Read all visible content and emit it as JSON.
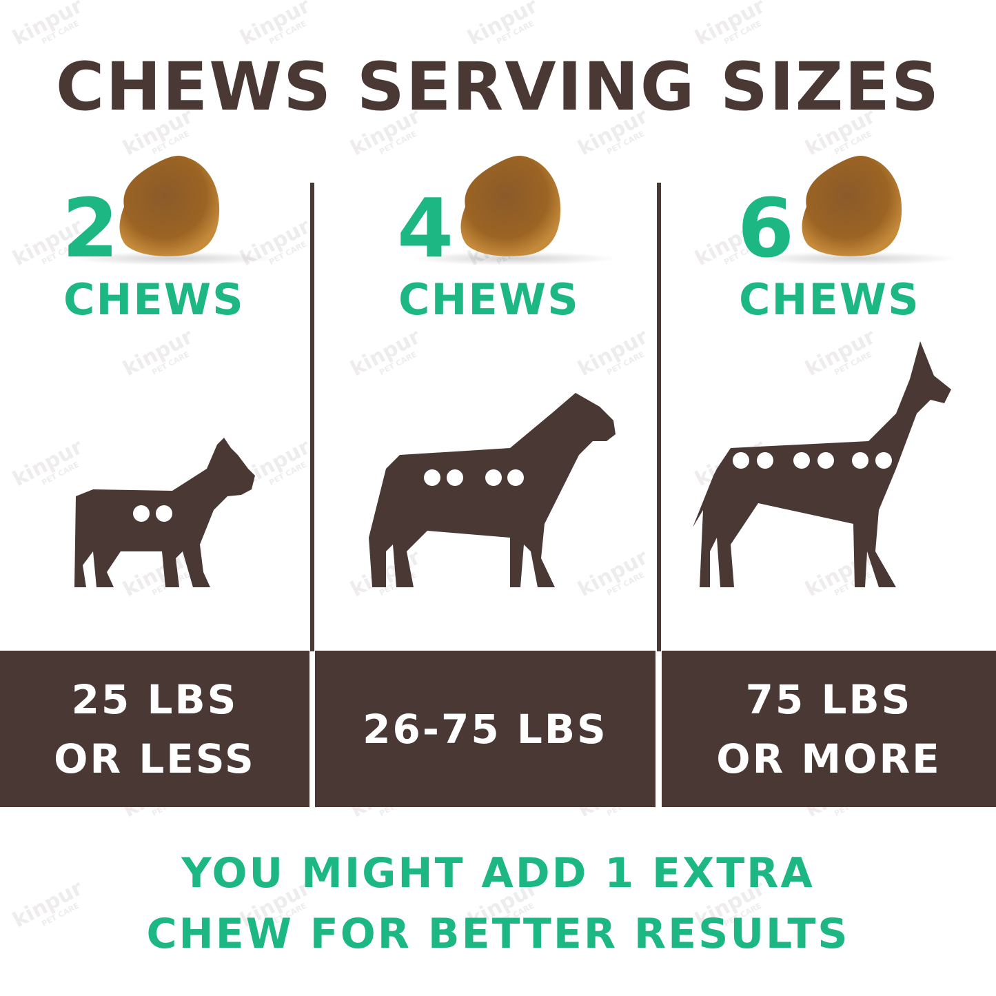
{
  "title": "CHEWS SERVING SIZES",
  "watermark": "kinpur PET CARE",
  "colors": {
    "brown": "#4a3835",
    "green": "#1db784",
    "chew": "#a0602a"
  },
  "panels": [
    {
      "count": "2",
      "unit": "CHEWS",
      "weight_lines": [
        "25 LBS",
        "OR LESS"
      ],
      "dog": "small-dog-silhouette",
      "dots": 2
    },
    {
      "count": "4",
      "unit": "CHEWS",
      "weight_lines": [
        "26-75 LBS"
      ],
      "dog": "medium-dog-silhouette",
      "dots": 4
    },
    {
      "count": "6",
      "unit": "CHEWS",
      "weight_lines": [
        "75 LBS",
        "OR MORE"
      ],
      "dog": "large-dog-silhouette",
      "dots": 6
    }
  ],
  "note": {
    "line1": "YOU MIGHT ADD 1 EXTRA",
    "line2": "CHEW FOR BETTER RESULTS"
  }
}
